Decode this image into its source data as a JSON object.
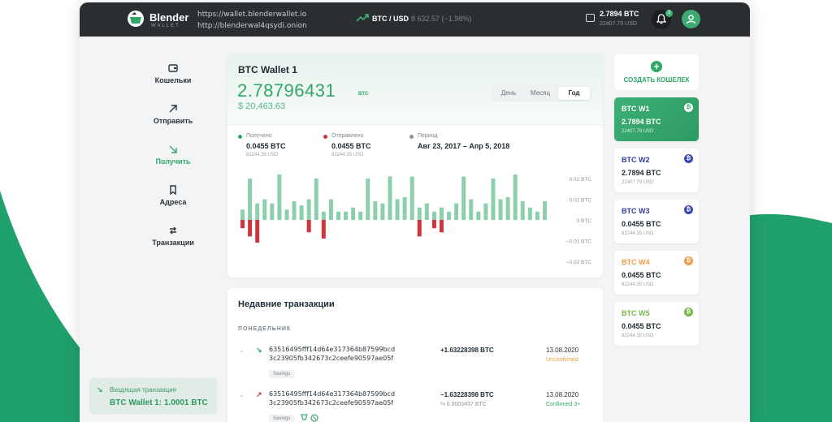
{
  "topbar": {
    "logo_name": "Blender",
    "logo_sub": "WALLET",
    "url_clearnet": "https://wallet.blenderwallet.io",
    "url_onion": "http://blenderwal4qsydi.onion",
    "pair": "BTC / USD",
    "pair_value": "8 632.57 (−1.98%)",
    "balance_btc": "2.7894 BTC",
    "balance_usd": "22407.79 USD",
    "notifications_count": "3"
  },
  "nav": {
    "items": [
      {
        "label": "Кошельки"
      },
      {
        "label": "Отправить"
      },
      {
        "label": "Получить"
      },
      {
        "label": "Адреса"
      },
      {
        "label": "Транзакции"
      }
    ],
    "active": "Получить"
  },
  "incoming": {
    "label": "Входящая транзакция",
    "value": "BTC Wallet 1: 1.0001 BTC"
  },
  "wallet": {
    "title": "BTC Wallet 1",
    "amount": "2.78796431",
    "unit": "BTC",
    "usd": "$ 20,463.63",
    "tabs": [
      {
        "label": "День"
      },
      {
        "label": "Месяц"
      },
      {
        "label": "Год"
      }
    ],
    "active_tab": "Год",
    "stats": [
      {
        "label": "Получено",
        "value": "0.0455 BTC",
        "sub": "82244.35 USD",
        "color": "#2ea866"
      },
      {
        "label": "Отправлено",
        "value": "0.0455 BTC",
        "sub": "82244.35 USD",
        "color": "#d03434"
      },
      {
        "label": "Период",
        "value": "Авг 23, 2017 – Апр 5, 2018",
        "sub": "",
        "color": "#8b959a"
      }
    ]
  },
  "chart_data": {
    "type": "bar",
    "y_ticks": [
      "0.02 BTC",
      "0.01 BTC",
      "0 BTC",
      "–0.01 BTC",
      "–0.02 BTC"
    ],
    "ylim": [
      -0.022,
      0.022
    ],
    "positive_color": "#8ccfab",
    "negative_color": "#d0343c",
    "values": [
      0.005,
      0.02,
      0.008,
      0.01,
      0.008,
      0.022,
      0.005,
      0.009,
      0.007,
      0.01,
      0.02,
      0.004,
      0.01,
      0.004,
      0.004,
      0.006,
      0.004,
      0.02,
      0.009,
      0.008,
      0.021,
      0.01,
      0.011,
      0.021,
      0.006,
      0.008,
      0.004,
      0.006,
      0.004,
      0.008,
      0.021,
      0.01,
      0.004,
      0.008,
      0.02,
      0.01,
      0.011,
      0.022,
      0.009,
      0.006,
      0.004,
      0.009
    ],
    "negatives": [
      -0.004,
      -0.008,
      -0.011,
      0,
      0,
      0,
      0,
      0,
      0,
      -0.006,
      0,
      -0.009,
      0,
      0,
      0,
      0,
      0,
      0,
      0,
      0,
      0,
      0,
      0,
      0,
      -0.008,
      0,
      -0.004,
      -0.006,
      0,
      0,
      0,
      0,
      0,
      0,
      0,
      0,
      0,
      0,
      0,
      0,
      0,
      0
    ]
  },
  "transactions": {
    "title": "Недавние транзакции",
    "day": "ПОНЕДЕЛЬНИК",
    "items": [
      {
        "dir": "in",
        "hash1": "63516495fff14d64e317364b87599bcd",
        "hash2": "3c23905fb342673c2ceefe90597ae05f",
        "tag": "Savings",
        "amount": "+1.63228398 BTC",
        "fee": "",
        "date": "13.08.2020",
        "status": "Unconfirmed",
        "status_color": "#e8a23a"
      },
      {
        "dir": "out",
        "hash1": "63516495fff14d64e317364b87599bcd",
        "hash2": "3c23905fb342673c2ceefe90597ae05f",
        "tag": "Savings",
        "amount": "−1.63228398 BTC",
        "fee": "⅔ 0.0003457 BTC",
        "date": "13.08.2020",
        "status": "Confirmed 3+",
        "status_color": "#2ea866"
      }
    ]
  },
  "create_wallet": "СОЗДАТЬ КОШЕЛЕК",
  "wallets": [
    {
      "name": "BTC W1",
      "btc": "2.7894 BTC",
      "usd": "22407.79 USD",
      "color": "#ffffff",
      "coin_color": "#e0a143"
    },
    {
      "name": "BTC W2",
      "btc": "2.7894 BTC",
      "usd": "22407.79 USD",
      "color": "#2f3e9e",
      "coin_color": "#3a48b0"
    },
    {
      "name": "BTC W3",
      "btc": "0.0455 BTC",
      "usd": "82244.35 USD",
      "color": "#2f3e9e",
      "coin_color": "#3a48b0"
    },
    {
      "name": "BTC W4",
      "btc": "0.0455 BTC",
      "usd": "82244.35 USD",
      "color": "#ee9d4a",
      "coin_color": "#ee9d4a"
    },
    {
      "name": "BTC W5",
      "btc": "0.0455 BTC",
      "usd": "82244.35 USD",
      "color": "#76b84a",
      "coin_color": "#76b84a"
    }
  ]
}
